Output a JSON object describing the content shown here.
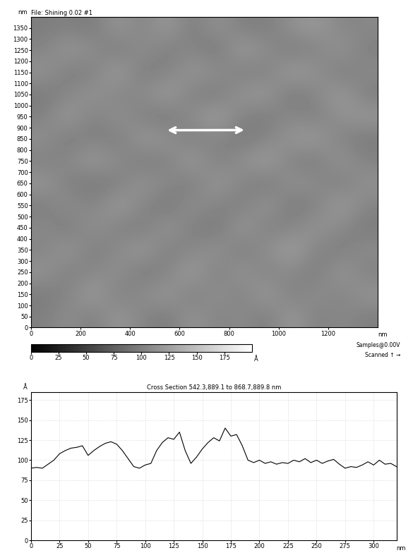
{
  "chart_data": [
    {
      "type": "heatmap",
      "title": "File: Shining 0.02 #1",
      "xlabel": "nm",
      "ylabel": "nm",
      "xlim": [
        0,
        1400
      ],
      "ylim": [
        0,
        1400
      ],
      "xticks": [
        0,
        200,
        400,
        600,
        800,
        1000,
        1200
      ],
      "yticks": [
        0,
        50,
        100,
        150,
        200,
        250,
        300,
        350,
        400,
        450,
        500,
        550,
        600,
        650,
        700,
        750,
        800,
        850,
        900,
        950,
        1000,
        1050,
        1100,
        1150,
        1200,
        1250,
        1300,
        1350
      ],
      "cells": [
        [
          100,
          112,
          98,
          120,
          104,
          96,
          118,
          102,
          110,
          97,
          122,
          100,
          108,
          99
        ],
        [
          96,
          104,
          125,
          99,
          110,
          121,
          97,
          115,
          100,
          124,
          98,
          113,
          102,
          118
        ],
        [
          118,
          99,
          106,
          114,
          95,
          103,
          126,
          98,
          119,
          101,
          109,
          96,
          121,
          100
        ],
        [
          102,
          121,
          97,
          108,
          123,
          99,
          105,
          117,
          96,
          112,
          127,
          103,
          98,
          111
        ],
        [
          109,
          95,
          116,
          101,
          97,
          119,
          100,
          94,
          122,
          99,
          104,
          118,
          107,
          96
        ],
        [
          97,
          113,
          102,
          124,
          106,
          92,
          114,
          103,
          98,
          120,
          95,
          101,
          125,
          104
        ],
        [
          120,
          100,
          94,
          99,
          117,
          108,
          96,
          121,
          105,
          93,
          116,
          110,
          97,
          115
        ],
        [
          99,
          107,
          122,
          110,
          96,
          101,
          124,
          99,
          113,
          126,
          100,
          97,
          119,
          102
        ],
        [
          114,
          96,
          103,
          97,
          121,
          115,
          98,
          106,
          95,
          104,
          118,
          123,
          101,
          96
        ],
        [
          101,
          123,
          99,
          116,
          100,
          94,
          111,
          127,
          102,
          97,
          108,
          99,
          114,
          120
        ],
        [
          95,
          105,
          118,
          102,
          109,
          125,
          100,
          96,
          117,
          121,
          94,
          106,
          123,
          98
        ],
        [
          117,
          98,
          100,
          126,
          97,
          103,
          119,
          112,
          99,
          101,
          124,
          115,
          96,
          109
        ],
        [
          103,
          120,
          111,
          95,
          114,
          98,
          106,
          93,
          124,
          110,
          97,
          102,
          118,
          100
        ],
        [
          98,
          101,
          96,
          119,
          102,
          122,
          97,
          116,
          100,
          99,
          113,
          121,
          104,
          107
        ]
      ],
      "colorbar_range": [
        0,
        200
      ],
      "colorbar_ticks": [
        0,
        25,
        50,
        75,
        100,
        125,
        150,
        175
      ],
      "colorbar_label": "Å",
      "annotations": [
        "Samples@0.00V",
        "Scanned ↑ →"
      ],
      "section_start": [
        542.3,
        889.1
      ],
      "section_end": [
        868.7,
        889.8
      ]
    },
    {
      "type": "line",
      "title": "Cross Section 542.3,889.1 to 868.7,889.8 nm",
      "xlabel": "nm",
      "ylabel": "Å",
      "color": "#000000",
      "xlim": [
        0,
        320
      ],
      "ylim": [
        0,
        185
      ],
      "xticks": [
        0,
        25,
        50,
        75,
        100,
        125,
        150,
        175,
        200,
        225,
        250,
        275,
        300
      ],
      "yticks": [
        0,
        25,
        50,
        75,
        100,
        125,
        150,
        175
      ],
      "x": [
        0,
        5,
        10,
        15,
        20,
        25,
        30,
        35,
        40,
        45,
        50,
        55,
        60,
        65,
        70,
        75,
        80,
        85,
        90,
        95,
        100,
        105,
        110,
        115,
        120,
        125,
        130,
        135,
        140,
        145,
        150,
        155,
        160,
        165,
        170,
        175,
        180,
        185,
        190,
        195,
        200,
        205,
        210,
        215,
        220,
        225,
        230,
        235,
        240,
        245,
        250,
        255,
        260,
        265,
        270,
        275,
        280,
        285,
        290,
        295,
        300,
        305,
        310,
        315,
        320
      ],
      "values": [
        90,
        91,
        90,
        95,
        100,
        108,
        112,
        115,
        116,
        118,
        106,
        112,
        117,
        121,
        123,
        120,
        112,
        102,
        92,
        90,
        94,
        96,
        112,
        122,
        128,
        126,
        135,
        112,
        96,
        104,
        114,
        122,
        128,
        124,
        140,
        130,
        132,
        118,
        100,
        97,
        100,
        96,
        98,
        95,
        97,
        96,
        100,
        98,
        102,
        97,
        100,
        96,
        99,
        101,
        95,
        90,
        92,
        91,
        94,
        98,
        94,
        100,
        95,
        96,
        92
      ]
    }
  ]
}
